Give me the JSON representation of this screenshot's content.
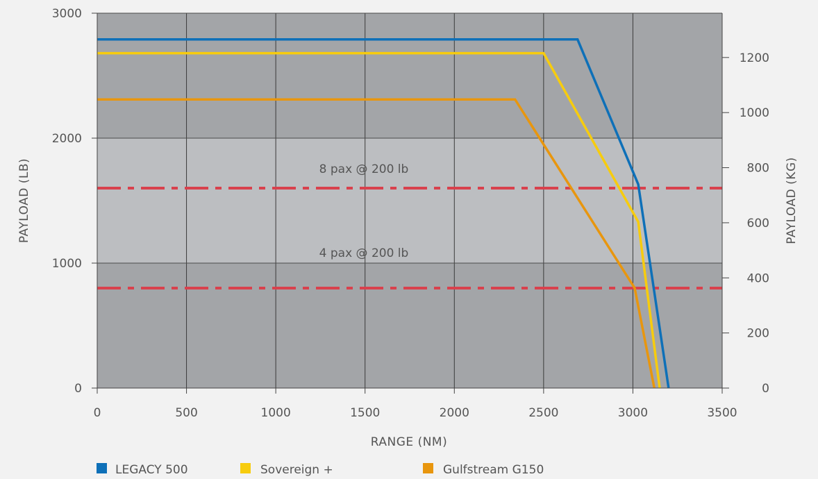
{
  "chart_data": {
    "type": "line",
    "title": "",
    "xlabel": "RANGE (NM)",
    "ylabel": "PAYLOAD (LB)",
    "y2label": "PAYLOAD (KG)",
    "xlim": [
      0,
      3500
    ],
    "ylim": [
      0,
      3000
    ],
    "y2lim": [
      0,
      1360.8
    ],
    "x_ticks": [
      0,
      500,
      1000,
      1500,
      2000,
      2500,
      3000,
      3500
    ],
    "y_ticks": [
      0,
      1000,
      2000,
      3000
    ],
    "y2_ticks": [
      0,
      200,
      400,
      600,
      800,
      1000,
      1200
    ],
    "grid": true,
    "bands": [
      {
        "y0": 0,
        "y1": 1000,
        "color": "#a3a5a8"
      },
      {
        "y0": 1000,
        "y1": 2000,
        "color": "#bcbec1"
      },
      {
        "y0": 2000,
        "y1": 3000,
        "color": "#a3a5a8"
      }
    ],
    "series": [
      {
        "name": "LEGACY 500",
        "color": "#0e70b8",
        "points": [
          [
            0,
            2790
          ],
          [
            2690,
            2790
          ],
          [
            3030,
            1630
          ],
          [
            3200,
            0
          ]
        ]
      },
      {
        "name": "Sovereign +",
        "color": "#f7cc0e",
        "points": [
          [
            0,
            2680
          ],
          [
            2500,
            2680
          ],
          [
            3030,
            1330
          ],
          [
            3150,
            0
          ]
        ]
      },
      {
        "name": "Gulfstream G150",
        "color": "#e8960e",
        "points": [
          [
            0,
            2310
          ],
          [
            2340,
            2310
          ],
          [
            3010,
            800
          ],
          [
            3120,
            0
          ]
        ]
      }
    ],
    "reference_lines": [
      {
        "label": "8 pax @ 200 lb",
        "y": 1600,
        "color": "#d9414d"
      },
      {
        "label": "4 pax @ 200 lb",
        "y": 800,
        "color": "#d9414d"
      }
    ],
    "legend_position": "bottom"
  }
}
